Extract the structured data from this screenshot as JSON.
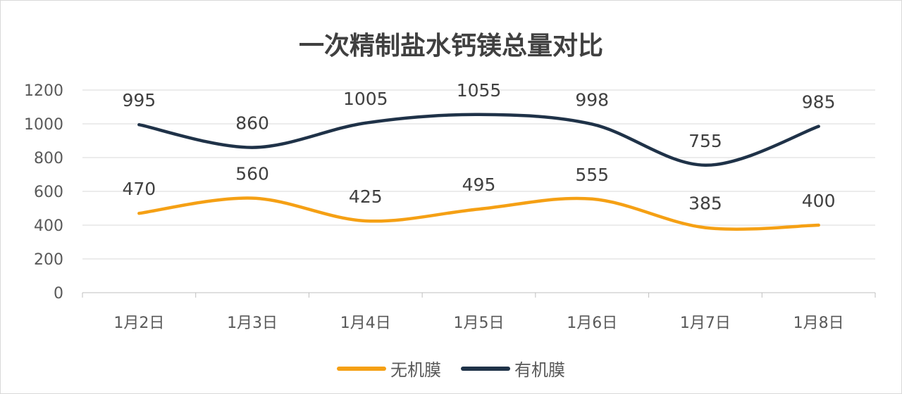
{
  "chart_data": {
    "type": "line",
    "title": "一次精制盐水钙镁总量对比",
    "categories": [
      "1月2日",
      "1月3日",
      "1月4日",
      "1月5日",
      "1月6日",
      "1月7日",
      "1月8日"
    ],
    "series": [
      {
        "name": "无机膜",
        "values": [
          470,
          560,
          425,
          495,
          555,
          385,
          400
        ],
        "color": "#F5A014"
      },
      {
        "name": "有机膜",
        "values": [
          995,
          860,
          1005,
          1055,
          998,
          755,
          985
        ],
        "color": "#1F3248"
      }
    ],
    "ylim": [
      0,
      1200
    ],
    "yticks": [
      0,
      200,
      400,
      600,
      800,
      1000,
      1200
    ],
    "grid": true,
    "smooth": true,
    "data_labels": true,
    "legend": "bottom"
  }
}
